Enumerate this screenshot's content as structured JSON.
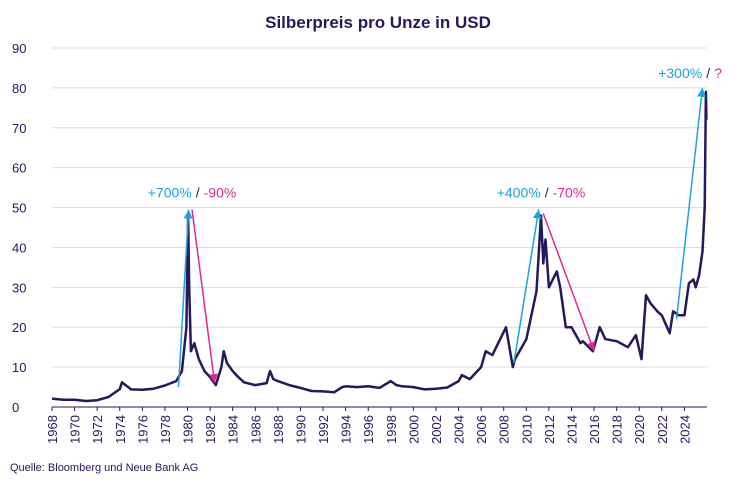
{
  "chart_data": {
    "type": "line",
    "title": "Silberpreis pro Unze in USD",
    "source": "Quelle: Bloomberg und Neue Bank AG",
    "color": "#24195a",
    "grid": true,
    "x": [
      1968,
      1969,
      1970,
      1971,
      1972,
      1973,
      1974,
      1974.2,
      1975,
      1976,
      1977,
      1978,
      1979,
      1979.5,
      1979.9,
      1980.05,
      1980.15,
      1980.3,
      1980.6,
      1981,
      1981.5,
      1982,
      1982.5,
      1983,
      1983.2,
      1983.5,
      1984,
      1984.5,
      1985,
      1986,
      1987,
      1987.3,
      1987.6,
      1988,
      1989,
      1990,
      1991,
      1992,
      1993,
      1993.7,
      1994,
      1995,
      1996,
      1997,
      1998,
      1998.5,
      1999,
      2000,
      2001,
      2002,
      2003,
      2004,
      2004.3,
      2005,
      2006,
      2006.4,
      2007,
      2008.2,
      2008.8,
      2009,
      2010,
      2010.9,
      2011.3,
      2011.5,
      2011.7,
      2012,
      2012.7,
      2013,
      2013.5,
      2014,
      2014.8,
      2015,
      2015.9,
      2016.5,
      2017,
      2018,
      2019,
      2019.7,
      2020.2,
      2020.6,
      2021,
      2021.6,
      2022,
      2022.7,
      2023,
      2023.5,
      2024,
      2024.4,
      2024.8,
      2025,
      2025.3,
      2025.6,
      2025.8,
      2025.9,
      2025.95
    ],
    "values": [
      2.1,
      1.8,
      1.8,
      1.5,
      1.7,
      2.5,
      4.5,
      6.2,
      4.4,
      4.3,
      4.6,
      5.4,
      6.5,
      9,
      20,
      48,
      30,
      14,
      16,
      12,
      9,
      7.5,
      5.5,
      10,
      14,
      11,
      9,
      7.5,
      6.2,
      5.5,
      6,
      9,
      7,
      6.5,
      5.5,
      4.8,
      4,
      3.9,
      3.7,
      5,
      5.2,
      5,
      5.2,
      4.8,
      6.5,
      5.5,
      5.2,
      5,
      4.4,
      4.6,
      4.9,
      6.5,
      8,
      7,
      10,
      14,
      13,
      20,
      10,
      12,
      17,
      29,
      48,
      36,
      42,
      30,
      34,
      30,
      20,
      20,
      16,
      16.5,
      14,
      20,
      17,
      16.5,
      15,
      18,
      12,
      28,
      26,
      24,
      23,
      18.5,
      24,
      23,
      23,
      31,
      32,
      30,
      33,
      39,
      50,
      79,
      72
    ],
    "xlim": [
      1968,
      2026
    ],
    "xticks": [
      1968,
      1970,
      1972,
      1974,
      1976,
      1978,
      1980,
      1982,
      1984,
      1986,
      1988,
      1990,
      1992,
      1994,
      1996,
      1998,
      2000,
      2002,
      2004,
      2006,
      2008,
      2010,
      2012,
      2014,
      2016,
      2018,
      2020,
      2022,
      2024
    ],
    "ylim": [
      0,
      90
    ],
    "yticks": [
      0,
      10,
      20,
      30,
      40,
      50,
      60,
      70,
      80,
      90
    ],
    "rise_color": "#1ea2db",
    "fall_color": "#e0288f",
    "annotations": [
      {
        "rise": "+700%",
        "sep": "/",
        "fall": "-90%",
        "x": 1980.4,
        "y": 52.5,
        "up": [
          [
            1979.2,
            5
          ],
          [
            1980.1,
            49.5
          ]
        ],
        "down": [
          [
            1980.4,
            49.5
          ],
          [
            1982.4,
            6
          ]
        ]
      },
      {
        "rise": "+400%",
        "sep": "/",
        "fall": "-70%",
        "x": 2011.3,
        "y": 52.5,
        "up": [
          [
            2008.9,
            11
          ],
          [
            2011.1,
            49.5
          ]
        ],
        "down": [
          [
            2011.5,
            48.5
          ],
          [
            2016,
            14
          ]
        ]
      },
      {
        "rise": "+300%",
        "sep": "/",
        "fall": "?",
        "x": 2024.5,
        "y": 82.5,
        "up": [
          [
            2023.3,
            22
          ],
          [
            2025.6,
            80
          ]
        ],
        "down": null
      }
    ]
  }
}
